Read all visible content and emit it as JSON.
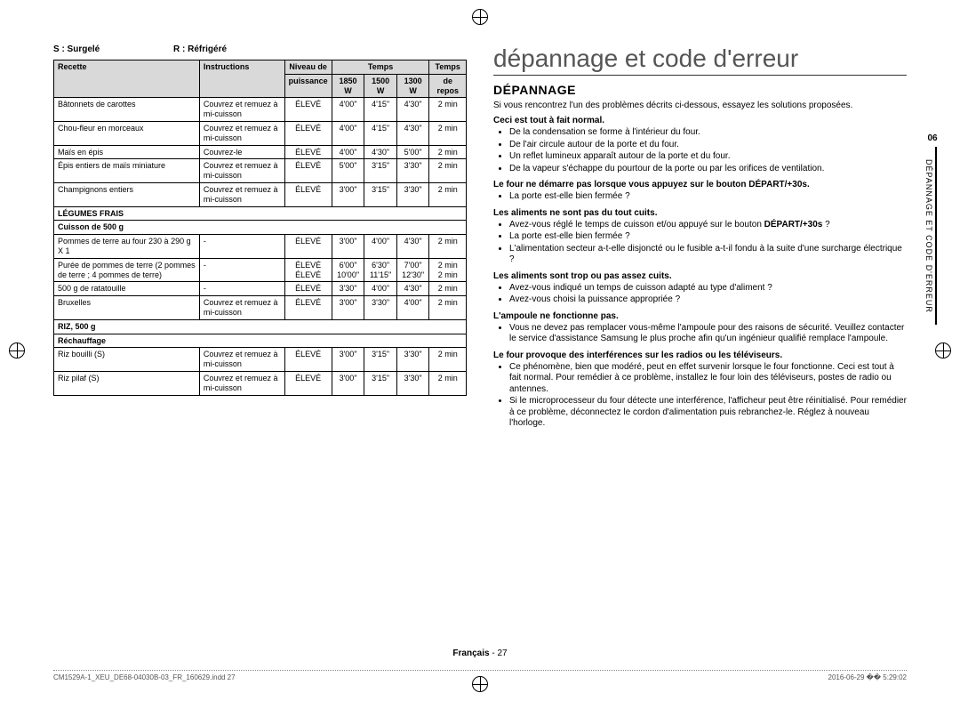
{
  "legend": {
    "s": "S : Surgelé",
    "r": "R : Réfrigéré"
  },
  "table": {
    "head": {
      "recette": "Recette",
      "instructions": "Instructions",
      "niveau_top": "Niveau de",
      "niveau_bot": "puissance",
      "temps": "Temps",
      "w1850": "1850 W",
      "w1500": "1500 W",
      "w1300": "1300 W",
      "repos_top": "Temps",
      "repos_bot": "de repos"
    },
    "groups": [
      {
        "rows": [
          {
            "recette": "Bâtonnets de carottes",
            "instr": "Couvrez et remuez à mi-cuisson",
            "p": "ÉLEVÉ",
            "t1": "4'00\"",
            "t2": "4'15\"",
            "t3": "4'30\"",
            "r": "2 min"
          },
          {
            "recette": "Chou-fleur en morceaux",
            "instr": "Couvrez et remuez à mi-cuisson",
            "p": "ÉLEVÉ",
            "t1": "4'00\"",
            "t2": "4'15\"",
            "t3": "4'30\"",
            "r": "2 min"
          },
          {
            "recette": "Maïs en épis",
            "instr": "Couvrez-le",
            "p": "ÉLEVÉ",
            "t1": "4'00\"",
            "t2": "4'30\"",
            "t3": "5'00\"",
            "r": "2 min"
          },
          {
            "recette": "Épis entiers de maïs miniature",
            "instr": "Couvrez et remuez à mi-cuisson",
            "p": "ÉLEVÉ",
            "t1": "5'00\"",
            "t2": "3'15\"",
            "t3": "3'30\"",
            "r": "2 min"
          },
          {
            "recette": "Champignons entiers",
            "instr": "Couvrez et remuez à mi-cuisson",
            "p": "ÉLEVÉ",
            "t1": "3'00\"",
            "t2": "3'15\"",
            "t3": "3'30\"",
            "r": "2 min"
          }
        ]
      },
      {
        "header1": "LÉGUMES FRAIS",
        "header2": "Cuisson de 500 g",
        "rows": [
          {
            "recette": "Pommes de terre au four 230 à 290 g X 1",
            "instr": "-",
            "p": "ÉLEVÉ",
            "t1": "3'00\"",
            "t2": "4'00\"",
            "t3": "4'30\"",
            "r": "2 min"
          },
          {
            "recette": "Purée de pommes de terre (2 pommes de terre ; 4 pommes de terre)",
            "instr": "-",
            "p": "ÉLEVÉ\nÉLEVÉ",
            "t1": "6'00\"\n10'00\"",
            "t2": "6'30\"\n11'15\"",
            "t3": "7'00\"\n12'30\"",
            "r": "2 min\n2 min",
            "dual": true
          },
          {
            "recette": "500 g de ratatouille",
            "instr": "-",
            "p": "ÉLEVÉ",
            "t1": "3'30\"",
            "t2": "4'00\"",
            "t3": "4'30\"",
            "r": "2 min"
          },
          {
            "recette": "Bruxelles",
            "instr": "Couvrez et remuez à mi-cuisson",
            "p": "ÉLEVÉ",
            "t1": "3'00\"",
            "t2": "3'30\"",
            "t3": "4'00\"",
            "r": "2 min"
          }
        ]
      },
      {
        "header1": "RIZ, 500 g",
        "header2": "Réchauffage",
        "rows": [
          {
            "recette": "Riz bouilli (S)",
            "instr": "Couvrez et remuez à mi-cuisson",
            "p": "ÉLEVÉ",
            "t1": "3'00\"",
            "t2": "3'15\"",
            "t3": "3'30\"",
            "r": "2 min"
          },
          {
            "recette": "Riz pilaf (S)",
            "instr": "Couvrez et remuez à mi-cuisson",
            "p": "ÉLEVÉ",
            "t1": "3'00\"",
            "t2": "3'15\"",
            "t3": "3'30\"",
            "r": "2 min"
          }
        ]
      }
    ]
  },
  "right": {
    "title": "dépannage et code d'erreur",
    "h2": "DÉPANNAGE",
    "intro": "Si vous rencontrez l'un des problèmes décrits ci-dessous, essayez les solutions proposées.",
    "sections": [
      {
        "topic": "Ceci est tout à fait normal.",
        "bullets": [
          "De la condensation se forme à l'intérieur du four.",
          "De l'air circule autour de la porte et du four.",
          "Un reflet lumineux apparaît autour de la porte et du four.",
          "De la vapeur s'échappe du pourtour de la porte ou par les orifices de ventilation."
        ]
      },
      {
        "topic": "Le four ne démarre pas lorsque vous appuyez sur le bouton DÉPART/+30s.",
        "bullets": [
          "La porte est-elle bien fermée ?"
        ]
      },
      {
        "topic": "Les aliments ne sont pas du tout cuits.",
        "bullets": [
          "Avez-vous réglé le temps de cuisson et/ou appuyé sur le bouton DÉPART/+30s ?",
          "La porte est-elle bien fermée ?",
          "L'alimentation secteur a-t-elle disjoncté ou le fusible a-t-il fondu à la suite d'une surcharge électrique ?"
        ]
      },
      {
        "topic": "Les aliments sont trop ou pas assez cuits.",
        "bullets": [
          "Avez-vous indiqué un temps de cuisson adapté au type d'aliment ?",
          "Avez-vous choisi la puissance appropriée ?"
        ]
      },
      {
        "topic": "L'ampoule ne fonctionne pas.",
        "bullets": [
          "Vous ne devez pas remplacer vous-même l'ampoule pour des raisons de sécurité. Veuillez contacter le service d'assistance Samsung le plus proche afin qu'un ingénieur qualifié remplace l'ampoule."
        ]
      },
      {
        "topic": "Le four provoque des interférences sur les radios ou les téléviseurs.",
        "bullets": [
          "Ce phénomène, bien que modéré, peut en effet survenir lorsque le four fonctionne. Ceci est tout à fait normal. Pour remédier à ce problème, installez le four loin des téléviseurs, postes de radio ou antennes.",
          "Si le microprocesseur du four détecte une interférence, l'afficheur peut être réinitialisé. Pour remédier à ce problème, déconnectez le cordon d'alimentation puis rebranchez-le. Réglez à nouveau l'horloge."
        ]
      }
    ]
  },
  "sideTab": {
    "num": "06",
    "txt": "DÉPANNAGE ET CODE D'ERREUR"
  },
  "footer": {
    "lang": "Français",
    "page": "27"
  },
  "printLine": {
    "file": "CM1529A-1_XEU_DE68-04030B-03_FR_160629.indd   27",
    "time": "2016-06-29   �� 5:29:02"
  }
}
